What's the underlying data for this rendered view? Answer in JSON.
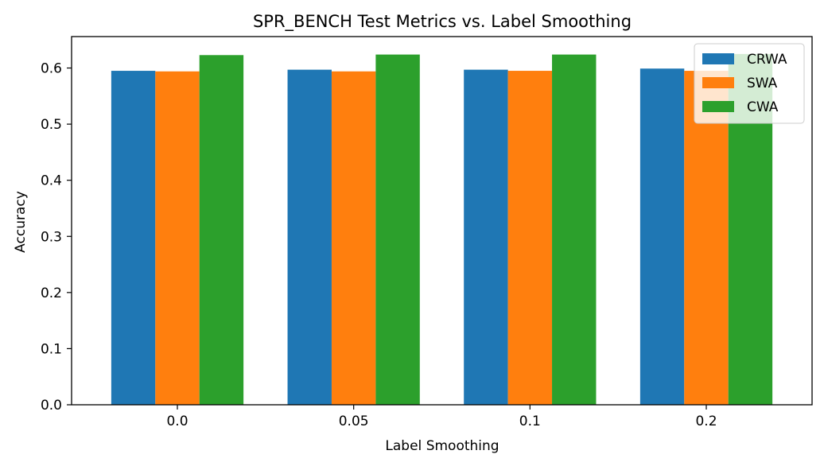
{
  "chart_data": {
    "type": "bar",
    "title": "SPR_BENCH Test Metrics vs. Label Smoothing",
    "xlabel": "Label Smoothing",
    "ylabel": "Accuracy",
    "categories": [
      "0.0",
      "0.05",
      "0.1",
      "0.2"
    ],
    "ylim": [
      0,
      0.656
    ],
    "yticks": [
      "0.0",
      "0.1",
      "0.2",
      "0.3",
      "0.4",
      "0.5",
      "0.6"
    ],
    "grid": false,
    "legend_position": "top-right",
    "series": [
      {
        "name": "CRWA",
        "color": "#1f77b4",
        "values": [
          0.595,
          0.597,
          0.597,
          0.599
        ]
      },
      {
        "name": "SWA",
        "color": "#ff7f0e",
        "values": [
          0.594,
          0.594,
          0.595,
          0.595
        ]
      },
      {
        "name": "CWA",
        "color": "#2ca02c",
        "values": [
          0.623,
          0.624,
          0.624,
          0.625
        ]
      }
    ]
  }
}
